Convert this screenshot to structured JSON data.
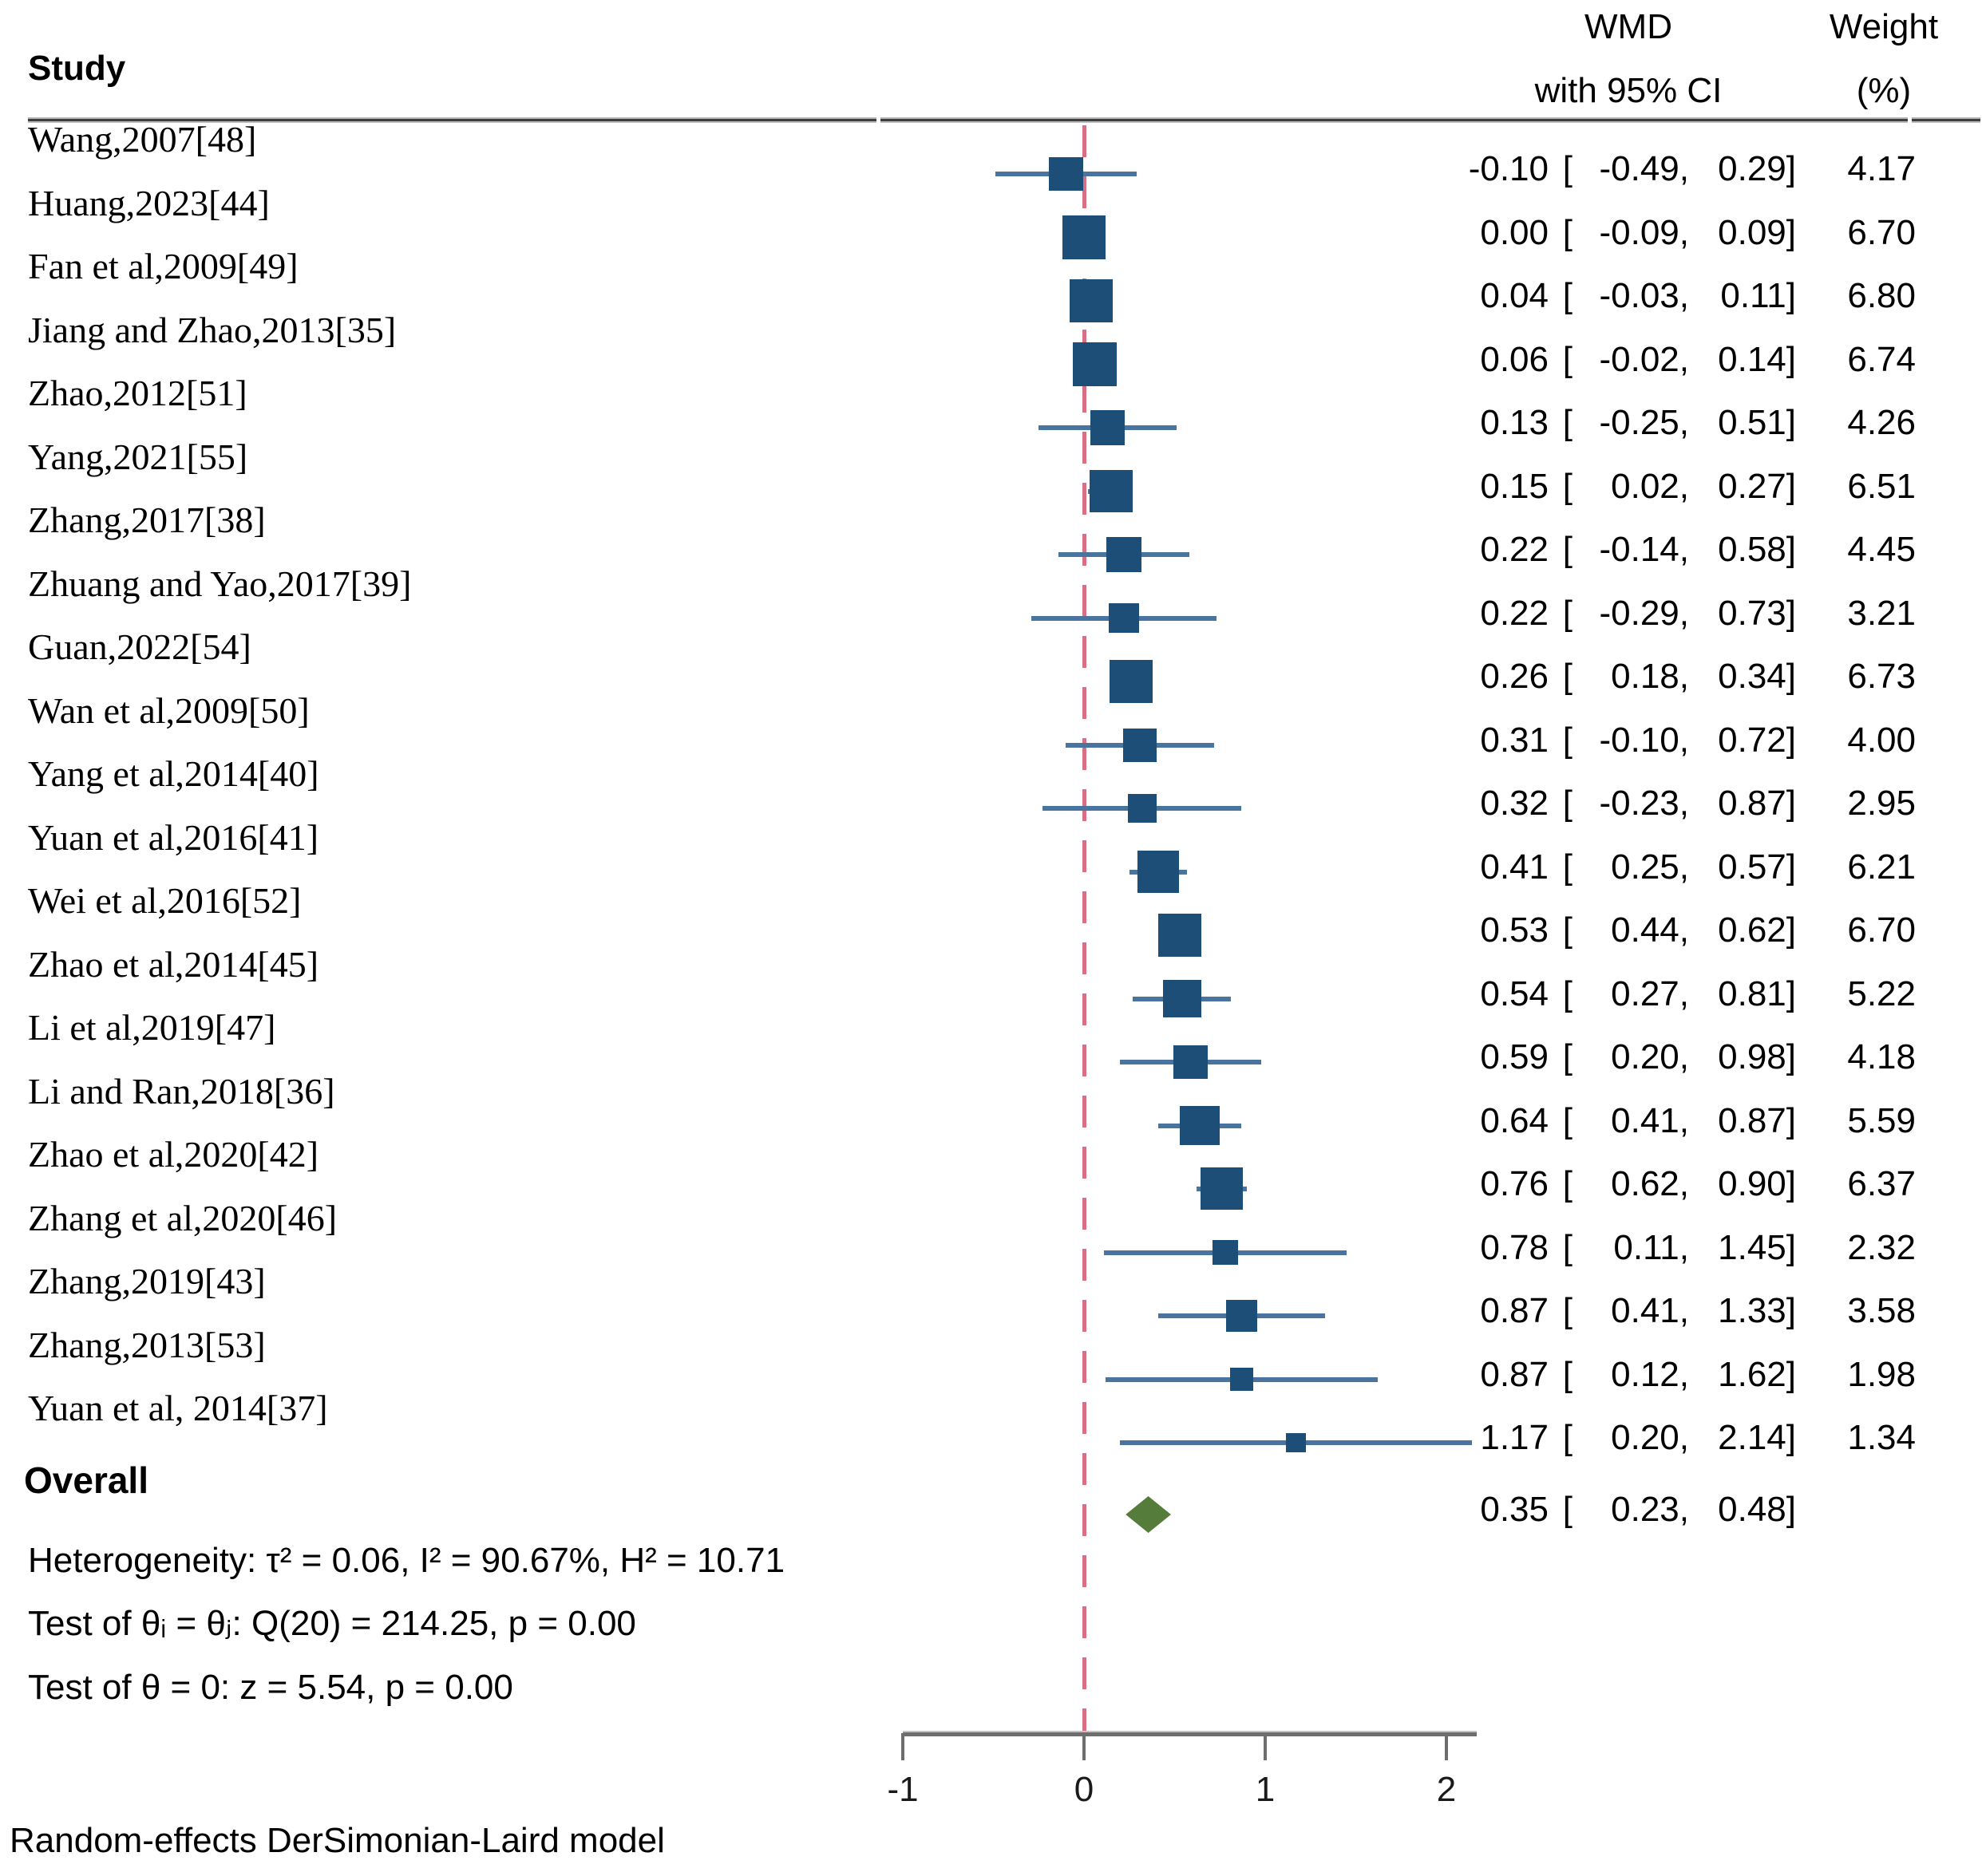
{
  "header": {
    "study_col": "Study",
    "wmd_col_line1": "WMD",
    "wmd_col_line2": "with 95% CI",
    "weight_col_line1": "Weight",
    "weight_col_line2": "(%)"
  },
  "chart_data": {
    "type": "forest",
    "effect_measure": "WMD",
    "x_axis": {
      "ticks": [
        "-1",
        "0",
        "1",
        "2"
      ],
      "tick_values": [
        -1,
        0,
        1,
        2
      ],
      "min": -1,
      "max": 2,
      "ref_line_value": 0,
      "grid": false
    },
    "studies": [
      {
        "label": "Wang,2007[48]",
        "wmd": "-0.10",
        "lo": "-0.49",
        "hi": "0.29",
        "weight": "4.17"
      },
      {
        "label": "Huang,2023[44]",
        "wmd": "0.00",
        "lo": "-0.09",
        "hi": "0.09",
        "weight": "6.70"
      },
      {
        "label": "Fan et al,2009[49]",
        "wmd": "0.04",
        "lo": "-0.03",
        "hi": "0.11",
        "weight": "6.80"
      },
      {
        "label": "Jiang and Zhao,2013[35]",
        "wmd": "0.06",
        "lo": "-0.02",
        "hi": "0.14",
        "weight": "6.74"
      },
      {
        "label": "Zhao,2012[51]",
        "wmd": "0.13",
        "lo": "-0.25",
        "hi": "0.51",
        "weight": "4.26"
      },
      {
        "label": "Yang,2021[55]",
        "wmd": "0.15",
        "lo": "0.02",
        "hi": "0.27",
        "weight": "6.51"
      },
      {
        "label": "Zhang,2017[38]",
        "wmd": "0.22",
        "lo": "-0.14",
        "hi": "0.58",
        "weight": "4.45"
      },
      {
        "label": "Zhuang and Yao,2017[39]",
        "wmd": "0.22",
        "lo": "-0.29",
        "hi": "0.73",
        "weight": "3.21"
      },
      {
        "label": "Guan,2022[54]",
        "wmd": "0.26",
        "lo": "0.18",
        "hi": "0.34",
        "weight": "6.73"
      },
      {
        "label": "Wan et al,2009[50]",
        "wmd": "0.31",
        "lo": "-0.10",
        "hi": "0.72",
        "weight": "4.00"
      },
      {
        "label": "Yang et al,2014[40]",
        "wmd": "0.32",
        "lo": "-0.23",
        "hi": "0.87",
        "weight": "2.95"
      },
      {
        "label": "Yuan et al,2016[41]",
        "wmd": "0.41",
        "lo": "0.25",
        "hi": "0.57",
        "weight": "6.21"
      },
      {
        "label": "Wei et al,2016[52]",
        "wmd": "0.53",
        "lo": "0.44",
        "hi": "0.62",
        "weight": "6.70"
      },
      {
        "label": "Zhao et al,2014[45]",
        "wmd": "0.54",
        "lo": "0.27",
        "hi": "0.81",
        "weight": "5.22"
      },
      {
        "label": "Li et al,2019[47]",
        "wmd": "0.59",
        "lo": "0.20",
        "hi": "0.98",
        "weight": "4.18"
      },
      {
        "label": "Li and Ran,2018[36]",
        "wmd": "0.64",
        "lo": "0.41",
        "hi": "0.87",
        "weight": "5.59"
      },
      {
        "label": "Zhao et al,2020[42]",
        "wmd": "0.76",
        "lo": "0.62",
        "hi": "0.90",
        "weight": "6.37"
      },
      {
        "label": "Zhang et al,2020[46]",
        "wmd": "0.78",
        "lo": "0.11",
        "hi": "1.45",
        "weight": "2.32"
      },
      {
        "label": "Zhang,2019[43]",
        "wmd": "0.87",
        "lo": "0.41",
        "hi": "1.33",
        "weight": "3.58"
      },
      {
        "label": "Zhang,2013[53]",
        "wmd": "0.87",
        "lo": "0.12",
        "hi": "1.62",
        "weight": "1.98"
      },
      {
        "label": "Yuan et al, 2014[37]",
        "wmd": "1.17",
        "lo": "0.20",
        "hi": "2.14",
        "weight": "1.34"
      }
    ],
    "overall": {
      "label": "Overall",
      "wmd": "0.35",
      "lo": "0.23",
      "hi": "0.48"
    },
    "colors": {
      "marker": "#1d4e78",
      "ci_line": "#4a74a0",
      "ref_line": "#d96f83",
      "diamond": "#567c3b",
      "axis": "#6e6e6e"
    }
  },
  "stats": {
    "heterogeneity": "Heterogeneity: τ² = 0.06, I² = 90.67%, H² = 10.71",
    "test_theta_ij": "Test of θᵢ = θⱼ: Q(20) = 214.25, p = 0.00",
    "test_theta_zero": "Test of θ = 0: z = 5.54, p = 0.00"
  },
  "footer": {
    "model_note": "Random-effects DerSimonian-Laird model"
  }
}
